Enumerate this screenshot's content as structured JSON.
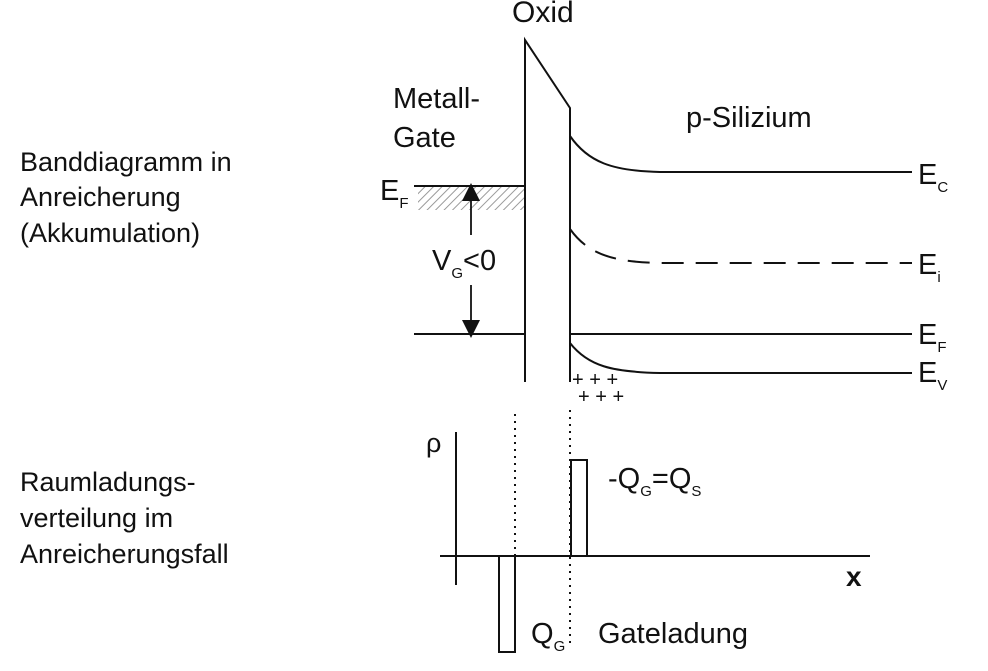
{
  "left_captions": {
    "band_line1": "Banddiagramm in",
    "band_line2": "Anreicherung",
    "band_line3": "(Akkumulation)",
    "charge_line1": "Raumladungs-",
    "charge_line2": "verteilung im",
    "charge_line3": "Anreicherungsfall"
  },
  "band": {
    "oxide_label": "Oxid",
    "metal_line1": "Metall-",
    "metal_line2": "Gate",
    "silicon_label": "p-Silizium",
    "fermi_metal": {
      "main": "E",
      "sub": "F"
    },
    "voltage": {
      "main": "V",
      "sub": "G",
      "rest": "<0"
    },
    "ec": {
      "main": "E",
      "sub": "C"
    },
    "ei": {
      "main": "E",
      "sub": "i"
    },
    "ef": {
      "main": "E",
      "sub": "F"
    },
    "ev": {
      "main": "E",
      "sub": "V"
    },
    "holes": "+ + +"
  },
  "charge": {
    "rho_label": "ρ",
    "x_label": "x",
    "qs_label": {
      "minus": "-Q",
      "sub1": "G",
      "mid": "=Q",
      "sub2": "S"
    },
    "qg_label": {
      "main": "Q",
      "sub": "G",
      "text": "Gateladung"
    }
  }
}
